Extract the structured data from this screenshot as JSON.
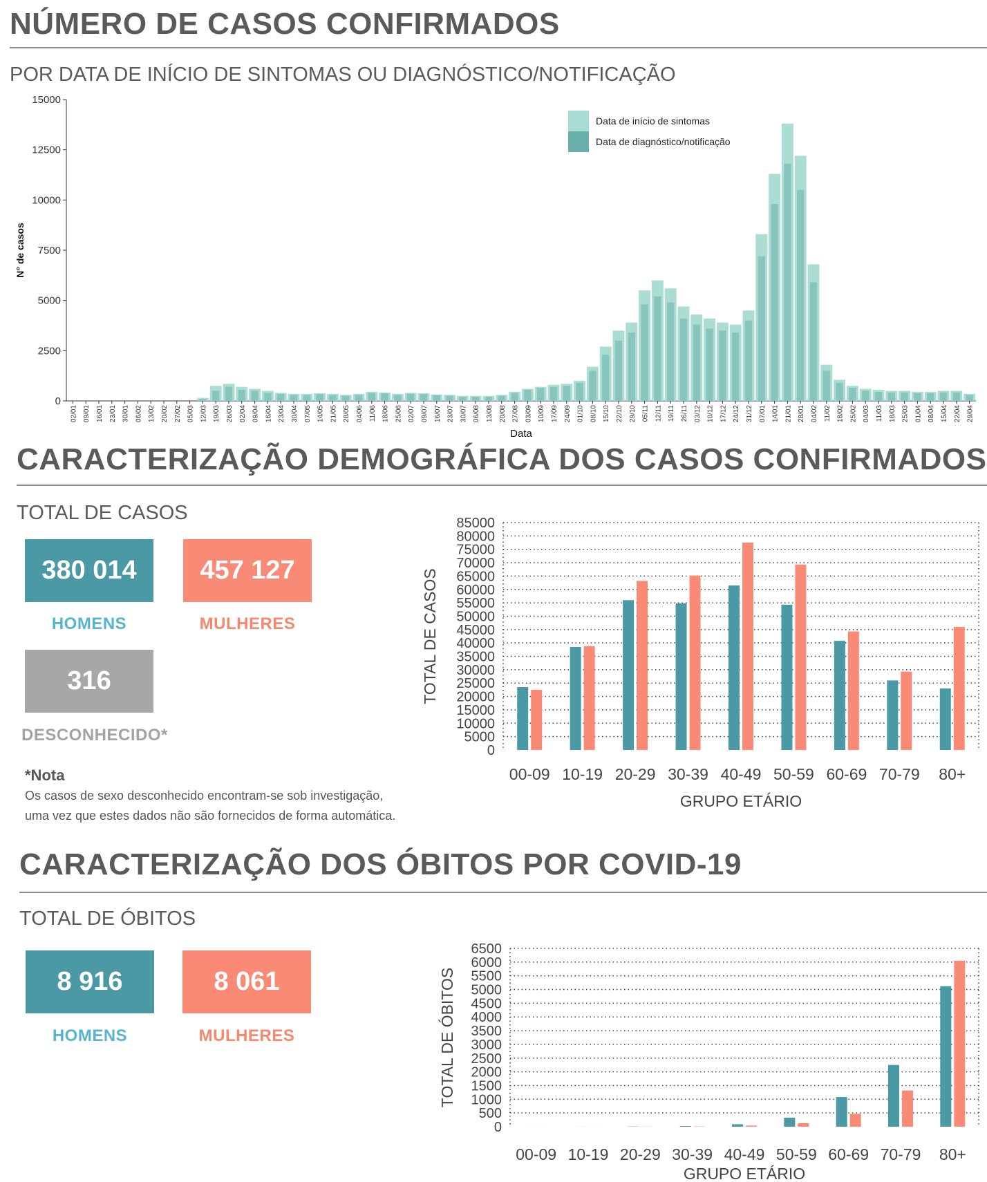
{
  "colors": {
    "heading": "#5a5a5a",
    "men": "#4b99a4",
    "women": "#f98a76",
    "unknown": "#a7a7a7",
    "men_label": "#58b3cd",
    "women_label": "#f6876f",
    "symptoms_bar": "#a8dbd1",
    "notification_bar": "#6bb1ab"
  },
  "section1": {
    "title": "NÚMERO DE CASOS CONFIRMADOS",
    "subtitle": "POR DATA DE INÍCIO DE SINTOMAS OU DIAGNÓSTICO/NOTIFICAÇÃO"
  },
  "section2": {
    "title": "CARACTERIZAÇÃO DEMOGRÁFICA DOS CASOS CONFIRMADOS",
    "subtitle": "TOTAL DE CASOS",
    "men_value": "380 014",
    "men_label": "HOMENS",
    "women_value": "457 127",
    "women_label": "MULHERES",
    "unknown_value": "316",
    "unknown_label": "DESCONHECIDO*",
    "note_title": "*Nota",
    "note_line1": "Os casos de sexo desconhecido encontram-se sob investigação,",
    "note_line2": "uma vez que estes dados não são fornecidos de forma automática."
  },
  "section3": {
    "title": "CARACTERIZAÇÃO DOS ÓBITOS POR COVID-19",
    "subtitle": "TOTAL DE ÓBITOS",
    "men_value": "8 916",
    "men_label": "HOMENS",
    "women_value": "8 061",
    "women_label": "MULHERES"
  },
  "chart_data": [
    {
      "type": "bar",
      "xlabel": "Data",
      "ylabel": "N° de casos",
      "ylim": [
        0,
        15000
      ],
      "yticks": [
        0,
        2500,
        5000,
        7500,
        10000,
        12500,
        15000
      ],
      "grid": false,
      "legend_position": "top-right",
      "x_tick_labels": [
        "02/01",
        "09/01",
        "16/01",
        "23/01",
        "30/01",
        "06/02",
        "13/02",
        "20/02",
        "27/02",
        "05/03",
        "12/03",
        "19/03",
        "26/03",
        "02/04",
        "09/04",
        "16/04",
        "23/04",
        "30/04",
        "07/05",
        "14/05",
        "21/05",
        "28/05",
        "04/06",
        "11/06",
        "18/06",
        "25/06",
        "02/07",
        "09/07",
        "16/07",
        "23/07",
        "30/07",
        "06/08",
        "13/08",
        "20/08",
        "27/08",
        "03/09",
        "10/09",
        "17/09",
        "24/09",
        "01/10",
        "08/10",
        "15/10",
        "22/10",
        "29/10",
        "05/11",
        "12/11",
        "19/11",
        "26/11",
        "03/12",
        "10/12",
        "17/12",
        "24/12",
        "31/12",
        "07/01",
        "14/01",
        "21/01",
        "28/01",
        "04/02",
        "11/02",
        "18/02",
        "25/02",
        "04/03",
        "11/03",
        "18/03",
        "25/03",
        "01/04",
        "08/04",
        "15/04",
        "22/04",
        "29/04"
      ],
      "series": [
        {
          "name": "Data de início de sintomas",
          "values": [
            0,
            0,
            0,
            0,
            0,
            0,
            0,
            0,
            0,
            0,
            150,
            750,
            850,
            700,
            600,
            500,
            400,
            350,
            350,
            380,
            350,
            300,
            350,
            450,
            420,
            350,
            400,
            380,
            320,
            300,
            250,
            250,
            250,
            300,
            450,
            600,
            700,
            800,
            850,
            1000,
            1700,
            2700,
            3500,
            3900,
            5500,
            6000,
            5600,
            4700,
            4300,
            4100,
            3900,
            3800,
            4500,
            8300,
            11300,
            13800,
            12200,
            6800,
            1800,
            1050,
            750,
            600,
            550,
            500,
            500,
            450,
            450,
            500,
            500,
            350
          ]
        },
        {
          "name": "Data de diagnóstico/notificação",
          "values": [
            0,
            0,
            0,
            0,
            0,
            0,
            0,
            0,
            0,
            0,
            100,
            500,
            700,
            550,
            500,
            400,
            350,
            300,
            300,
            330,
            300,
            250,
            300,
            400,
            380,
            300,
            350,
            330,
            280,
            250,
            200,
            200,
            200,
            250,
            400,
            550,
            650,
            700,
            750,
            900,
            1500,
            2300,
            3000,
            3400,
            4800,
            5200,
            4900,
            4100,
            3800,
            3600,
            3500,
            3400,
            4000,
            7200,
            9800,
            11800,
            10500,
            5900,
            1500,
            900,
            650,
            500,
            450,
            420,
            420,
            380,
            380,
            420,
            420,
            300
          ]
        }
      ]
    },
    {
      "type": "bar",
      "categories": [
        "00-09",
        "10-19",
        "20-29",
        "30-39",
        "40-49",
        "50-59",
        "60-69",
        "70-79",
        "80+"
      ],
      "xlabel": "GRUPO ETÁRIO",
      "ylabel": "TOTAL DE CASOS",
      "ylim": [
        0,
        85000
      ],
      "yticks": [
        0,
        5000,
        10000,
        15000,
        20000,
        25000,
        30000,
        35000,
        40000,
        45000,
        50000,
        55000,
        60000,
        65000,
        70000,
        75000,
        80000,
        85000
      ],
      "grid": true,
      "series": [
        {
          "values": [
            23500,
            38500,
            56000,
            54800,
            61500,
            54300,
            40800,
            26000,
            23000
          ]
        },
        {
          "values": [
            22500,
            38800,
            63200,
            65200,
            77500,
            69300,
            44300,
            29300,
            46000
          ]
        }
      ]
    },
    {
      "type": "bar",
      "categories": [
        "00-09",
        "10-19",
        "20-29",
        "30-39",
        "40-49",
        "50-59",
        "60-69",
        "70-79",
        "80+"
      ],
      "xlabel": "GRUPO ETÁRIO",
      "ylabel": "TOTAL DE ÓBITOS",
      "ylim": [
        0,
        6500
      ],
      "yticks": [
        0,
        500,
        1000,
        1500,
        2000,
        2500,
        3000,
        3500,
        4000,
        4500,
        5000,
        5500,
        6000,
        6500
      ],
      "grid": true,
      "series": [
        {
          "values": [
            1,
            2,
            8,
            25,
            90,
            330,
            1080,
            2250,
            5120
          ]
        },
        {
          "values": [
            1,
            1,
            4,
            10,
            40,
            130,
            470,
            1320,
            6050
          ]
        }
      ]
    }
  ]
}
